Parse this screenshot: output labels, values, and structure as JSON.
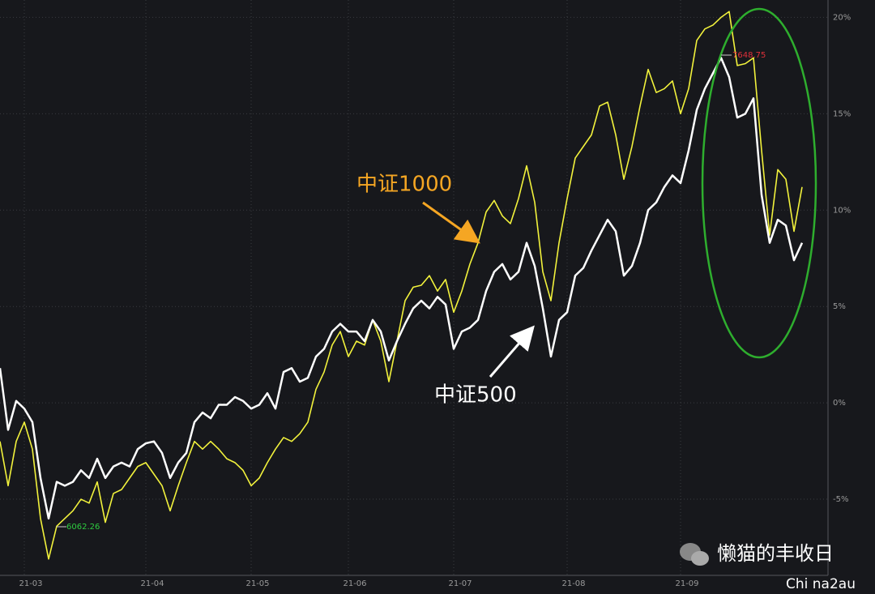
{
  "chart_data": {
    "type": "line",
    "categories": [
      null,
      null,
      null,
      "21-03",
      null,
      null,
      null,
      null,
      null,
      null,
      null,
      null,
      null,
      null,
      null,
      null,
      null,
      null,
      "21-04",
      null,
      null,
      null,
      null,
      null,
      null,
      null,
      null,
      null,
      null,
      null,
      null,
      "21-05",
      null,
      null,
      null,
      null,
      null,
      null,
      null,
      null,
      null,
      null,
      null,
      "21-06",
      null,
      null,
      null,
      null,
      null,
      null,
      null,
      null,
      null,
      null,
      null,
      null,
      "21-07",
      null,
      null,
      null,
      null,
      null,
      null,
      null,
      null,
      null,
      null,
      null,
      null,
      null,
      "21-08",
      null,
      null,
      null,
      null,
      null,
      null,
      null,
      null,
      null,
      null,
      null,
      null,
      null,
      "21-09",
      null,
      null,
      null,
      null,
      null,
      null,
      null,
      null,
      null,
      null,
      null,
      null,
      null,
      null,
      null
    ],
    "series": [
      {
        "name": "中证500",
        "color": "#ffffff",
        "values": [
          1.8,
          -1.4,
          0.1,
          -0.3,
          -1.0,
          -3.9,
          -6.0,
          -4.1,
          -4.3,
          -4.1,
          -3.5,
          -3.9,
          -2.9,
          -3.9,
          -3.3,
          -3.1,
          -3.3,
          -2.4,
          -2.1,
          -2.0,
          -2.6,
          -3.9,
          -3.1,
          -2.6,
          -1.0,
          -0.5,
          -0.8,
          -0.1,
          -0.1,
          0.3,
          0.1,
          -0.3,
          -0.1,
          0.5,
          -0.3,
          1.6,
          1.8,
          1.1,
          1.3,
          2.4,
          2.8,
          3.7,
          4.1,
          3.7,
          3.7,
          3.2,
          4.3,
          3.7,
          2.2,
          3.2,
          4.1,
          4.9,
          5.3,
          4.9,
          5.5,
          5.1,
          2.8,
          3.7,
          3.9,
          4.3,
          5.8,
          6.8,
          7.2,
          6.4,
          6.8,
          8.3,
          7.1,
          4.9,
          2.4,
          4.3,
          4.7,
          6.6,
          7.0,
          7.9,
          8.7,
          9.5,
          8.9,
          6.6,
          7.1,
          8.3,
          10.0,
          10.4,
          11.2,
          11.8,
          11.4,
          13.1,
          15.2,
          16.3,
          17.1,
          17.9,
          16.9,
          14.8,
          15.0,
          15.8,
          10.8,
          8.3,
          9.5,
          9.2,
          7.4,
          8.3
        ]
      },
      {
        "name": "中证1000",
        "color": "#f2f23c",
        "values": [
          -2.0,
          -4.3,
          -2.0,
          -1.0,
          -2.4,
          -6.0,
          -8.1,
          -6.4,
          -6.0,
          -5.6,
          -5.0,
          -5.2,
          -4.1,
          -6.2,
          -4.7,
          -4.5,
          -3.9,
          -3.3,
          -3.1,
          -3.7,
          -4.3,
          -5.6,
          -4.3,
          -3.1,
          -2.0,
          -2.4,
          -2.0,
          -2.4,
          -2.9,
          -3.1,
          -3.5,
          -4.3,
          -3.9,
          -3.1,
          -2.4,
          -1.8,
          -2.0,
          -1.6,
          -1.0,
          0.7,
          1.6,
          3.0,
          3.7,
          2.4,
          3.2,
          3.0,
          4.3,
          3.2,
          1.1,
          3.2,
          5.3,
          6.0,
          6.1,
          6.6,
          5.8,
          6.4,
          4.7,
          5.8,
          7.2,
          8.3,
          9.9,
          10.5,
          9.7,
          9.3,
          10.6,
          12.3,
          10.4,
          6.8,
          5.3,
          8.3,
          10.6,
          12.7,
          13.3,
          13.9,
          15.4,
          15.6,
          13.9,
          11.6,
          13.3,
          15.4,
          17.3,
          16.1,
          16.3,
          16.7,
          15.0,
          16.3,
          18.8,
          19.4,
          19.6,
          20.0,
          20.3,
          17.5,
          17.6,
          17.9,
          13.1,
          8.7,
          12.1,
          11.6,
          8.9,
          11.2
        ]
      }
    ],
    "ylim": [
      -8.95,
      20.9
    ],
    "yticks": [
      {
        "value": -5,
        "label": "-5%"
      },
      {
        "value": 0,
        "label": "0%"
      },
      {
        "value": 5,
        "label": "5%"
      },
      {
        "value": 10,
        "label": "10%"
      },
      {
        "value": 15,
        "label": "15%"
      },
      {
        "value": 20,
        "label": "20%"
      }
    ],
    "grid": true,
    "annotations": {
      "label_1000": "中证1000",
      "label_500": "中证500",
      "max_marker": "7648.75",
      "min_marker": "6062.26"
    },
    "watermark": {
      "account": "懒猫的丰收日",
      "id": "Chi na2au"
    }
  }
}
